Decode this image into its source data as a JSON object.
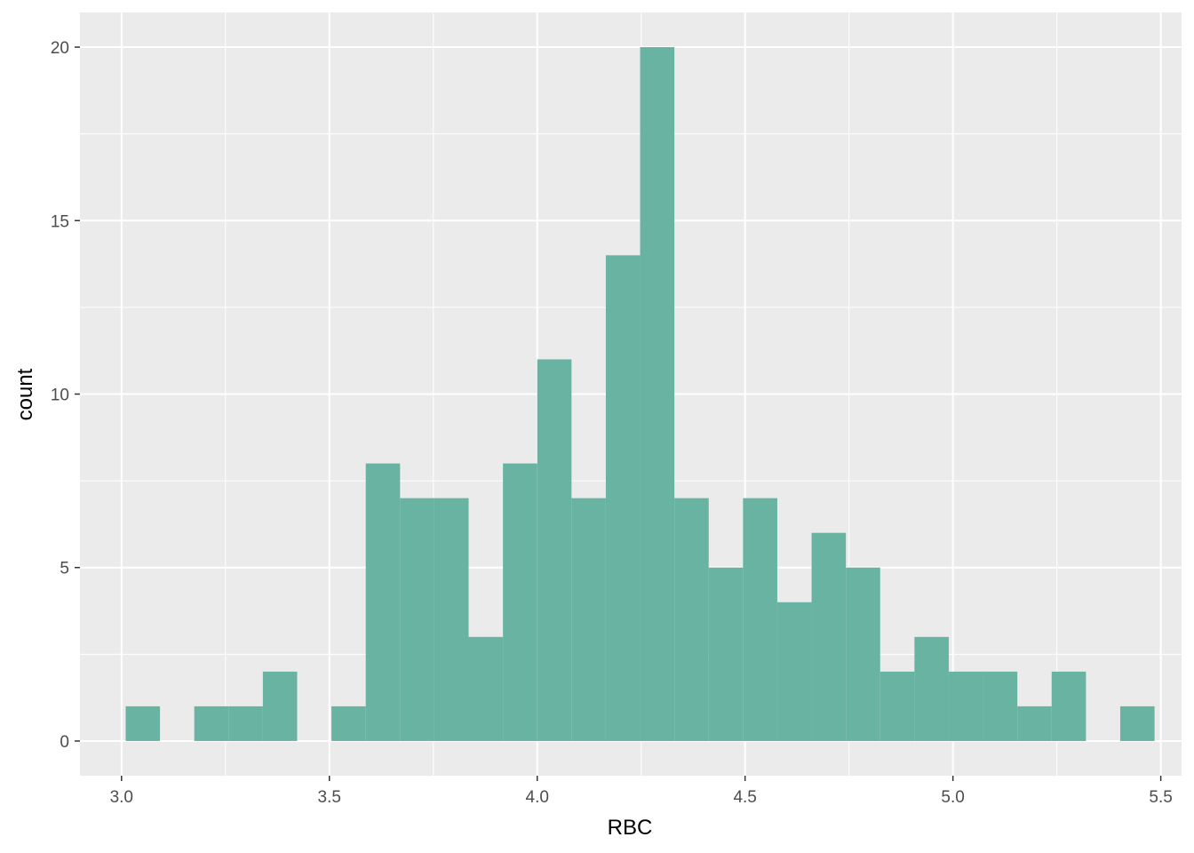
{
  "chart_data": {
    "type": "bar",
    "subtype": "histogram",
    "title": "",
    "xlabel": "RBC",
    "ylabel": "count",
    "xlim": [
      2.9,
      5.55
    ],
    "ylim": [
      -1,
      21
    ],
    "x_ticks": [
      3.0,
      3.5,
      4.0,
      4.5,
      5.0,
      5.5
    ],
    "x_tick_labels": [
      "3.0",
      "3.5",
      "4.0",
      "4.5",
      "5.0",
      "5.5"
    ],
    "y_ticks": [
      0,
      5,
      10,
      15,
      20
    ],
    "y_tick_labels": [
      "0",
      "5",
      "10",
      "15",
      "20"
    ],
    "bin_width": 0.0825,
    "bins_start": [
      3.01,
      3.0925,
      3.175,
      3.2575,
      3.34,
      3.4225,
      3.505,
      3.5875,
      3.67,
      3.7525,
      3.835,
      3.9175,
      4.0,
      4.0825,
      4.165,
      4.2475,
      4.33,
      4.4125,
      4.495,
      4.5775,
      4.66,
      4.7425,
      4.825,
      4.9075,
      4.99,
      5.0725,
      5.155,
      5.2375,
      5.32,
      5.4025
    ],
    "counts": [
      1,
      0,
      1,
      1,
      2,
      0,
      1,
      8,
      7,
      7,
      3,
      8,
      11,
      7,
      14,
      20,
      7,
      5,
      7,
      4,
      6,
      5,
      2,
      3,
      2,
      2,
      1,
      2,
      0,
      1
    ],
    "grid": true,
    "legend": "none",
    "colors": {
      "panel_background": "#ebebeb",
      "grid_major": "#ffffff",
      "bar_fill": "#69b3a2",
      "tick_text": "#4d4d4d",
      "axis_title": "#000000"
    }
  }
}
